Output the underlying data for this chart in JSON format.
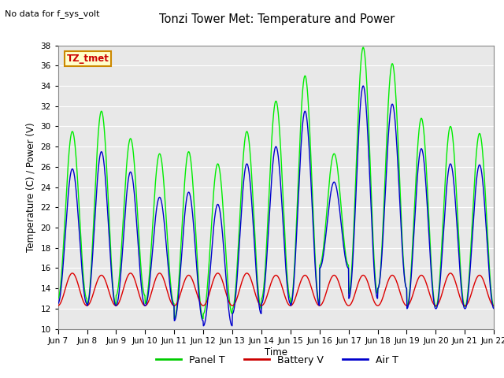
{
  "title": "Tonzi Tower Met: Temperature and Power",
  "no_data_text": "No data for f_sys_volt",
  "ylabel": "Temperature (C) / Power (V)",
  "xlabel": "Time",
  "ylim": [
    10,
    38
  ],
  "yticks": [
    10,
    12,
    14,
    16,
    18,
    20,
    22,
    24,
    26,
    28,
    30,
    32,
    34,
    36,
    38
  ],
  "xtick_labels": [
    "Jun 7",
    "Jun 8",
    "Jun 9",
    "Jun 10",
    "Jun 11",
    "Jun 12",
    "Jun 13",
    "Jun 14",
    "Jun 15",
    "Jun 16",
    "Jun 17",
    "Jun 18",
    "Jun 19",
    "Jun 20",
    "Jun 21",
    "Jun 22"
  ],
  "legend_label": "TZ_tmet",
  "legend_entries": [
    "Panel T",
    "Battery V",
    "Air T"
  ],
  "legend_colors": [
    "#00cc00",
    "#cc0000",
    "#0000cc"
  ],
  "bg_color": "#e8e8e8",
  "panel_t_color": "#00ee00",
  "battery_v_color": "#dd0000",
  "air_t_color": "#0000cc",
  "n_days": 15,
  "pts_per_day": 96,
  "panel_t_peaks": [
    29.5,
    31.5,
    28.8,
    27.3,
    27.5,
    26.3,
    29.5,
    32.5,
    35.0,
    27.3,
    37.8,
    36.2,
    30.8,
    30.0,
    29.3
  ],
  "panel_t_troughs": [
    13.0,
    12.3,
    13.3,
    12.5,
    11.0,
    11.5,
    12.0,
    13.0,
    12.5,
    16.3,
    13.5,
    14.0,
    12.2,
    12.2,
    12.2
  ],
  "air_t_peaks": [
    25.8,
    27.5,
    25.5,
    23.0,
    23.5,
    22.3,
    26.3,
    28.0,
    31.5,
    24.5,
    34.0,
    32.2,
    27.8,
    26.3,
    26.2
  ],
  "air_t_troughs": [
    12.5,
    12.3,
    12.3,
    12.3,
    10.8,
    10.3,
    11.5,
    12.5,
    12.3,
    16.0,
    13.0,
    14.0,
    12.0,
    12.0,
    12.0
  ],
  "battery_v_peaks": [
    15.5,
    15.3,
    15.5,
    15.5,
    15.3,
    15.5,
    15.5,
    15.3,
    15.3,
    15.3,
    15.3,
    15.3,
    15.3,
    15.5,
    15.3
  ],
  "battery_v_troughs": [
    12.3,
    12.3,
    12.3,
    12.3,
    12.3,
    12.3,
    12.3,
    12.3,
    12.3,
    12.3,
    12.3,
    12.3,
    12.3,
    12.3,
    12.3
  ]
}
